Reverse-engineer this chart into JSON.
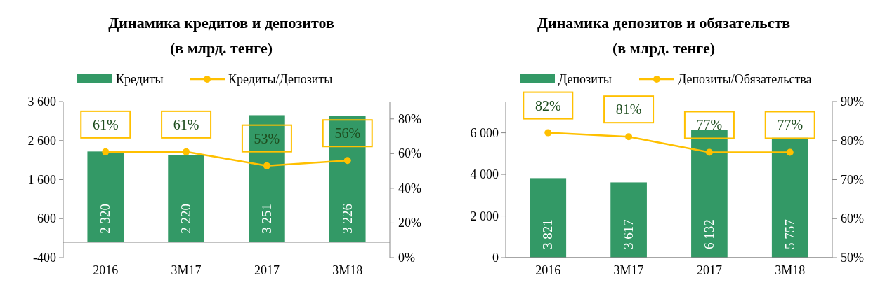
{
  "chart_data": [
    {
      "type": "bar",
      "title": "Динамика кредитов и депозитов",
      "subtitle": "(в млрд. тенге)",
      "categories": [
        "2016",
        "3M17",
        "2017",
        "3M18"
      ],
      "series": [
        {
          "name": "Кредиты",
          "color": "#339966",
          "values": [
            2320,
            2220,
            3251,
            3226
          ],
          "value_labels": [
            "2 320",
            "2 220",
            "3 251",
            "3 226"
          ]
        },
        {
          "name": "Кредиты/Депозиты",
          "type": "line",
          "axis": "y2",
          "color": "#ffc000",
          "values": [
            61,
            61,
            53,
            56
          ],
          "value_labels": [
            "61%",
            "61%",
            "53%",
            "56%"
          ]
        }
      ],
      "ylim": [
        -400,
        3600
      ],
      "yticks": [
        -400,
        {
          "value": 600,
          "label": "600"
        },
        {
          "value": 1600,
          "label": "1 600"
        },
        {
          "value": 2600,
          "label": "2 600"
        },
        {
          "value": 3600,
          "label": "3 600"
        }
      ],
      "y2lim": [
        0,
        90
      ],
      "y2ticks": [
        {
          "value": 0,
          "label": "0%"
        },
        {
          "value": 20,
          "label": "20%"
        },
        {
          "value": 40,
          "label": "40%"
        },
        {
          "value": 60,
          "label": "60%"
        },
        {
          "value": 80,
          "label": "80%"
        }
      ],
      "legend": "top",
      "marker": "circle",
      "grid": false
    },
    {
      "type": "bar",
      "title": "Динамика депозитов и обязательств",
      "subtitle": "(в млрд. тенге)",
      "categories": [
        "2016",
        "3M17",
        "2017",
        "3M18"
      ],
      "series": [
        {
          "name": "Депозиты",
          "color": "#339966",
          "values": [
            3821,
            3617,
            6132,
            5757
          ],
          "value_labels": [
            "3 821",
            "3 617",
            "6 132",
            "5 757"
          ]
        },
        {
          "name": "Депозиты/Обязательства",
          "type": "line",
          "axis": "y2",
          "color": "#ffc000",
          "values": [
            82,
            81,
            77,
            77
          ],
          "value_labels": [
            "82%",
            "81%",
            "77%",
            "77%"
          ]
        }
      ],
      "ylim": [
        0,
        7500
      ],
      "yticks": [
        0,
        {
          "value": 2000,
          "label": "2 000"
        },
        {
          "value": 4000,
          "label": "4 000"
        },
        {
          "value": 6000,
          "label": "6 000"
        }
      ],
      "y2lim": [
        50,
        90
      ],
      "y2ticks": [
        {
          "value": 50,
          "label": "50%"
        },
        {
          "value": 60,
          "label": "60%"
        },
        {
          "value": 70,
          "label": "70%"
        },
        {
          "value": 80,
          "label": "80%"
        },
        {
          "value": 90,
          "label": "90%"
        }
      ],
      "legend": "top",
      "marker": "circle",
      "grid": false
    }
  ]
}
